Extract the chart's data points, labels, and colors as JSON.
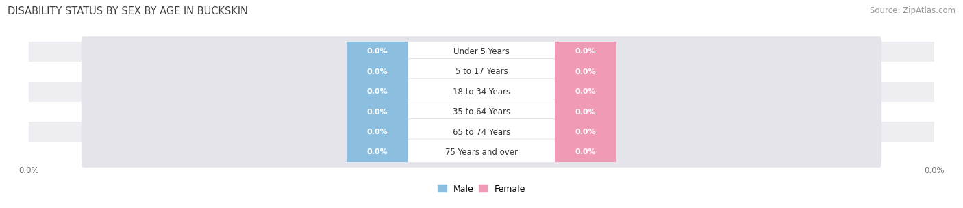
{
  "title": "DISABILITY STATUS BY SEX BY AGE IN BUCKSKIN",
  "source": "Source: ZipAtlas.com",
  "categories": [
    "Under 5 Years",
    "5 to 17 Years",
    "18 to 34 Years",
    "35 to 64 Years",
    "65 to 74 Years",
    "75 Years and over"
  ],
  "male_values": [
    0.0,
    0.0,
    0.0,
    0.0,
    0.0,
    0.0
  ],
  "female_values": [
    0.0,
    0.0,
    0.0,
    0.0,
    0.0,
    0.0
  ],
  "male_color": "#8cbfdf",
  "female_color": "#f09ab5",
  "bar_bg_color": "#e4e4ea",
  "row_alt_color": "#ededf2",
  "background_color": "#ffffff",
  "title_color": "#404040",
  "source_color": "#999999",
  "value_text_color": "#ffffff",
  "label_text_color": "#333333",
  "axis_text_color": "#777777",
  "title_fontsize": 10.5,
  "source_fontsize": 8.5,
  "category_fontsize": 8.5,
  "value_fontsize": 8.0,
  "axis_fontsize": 8.5
}
